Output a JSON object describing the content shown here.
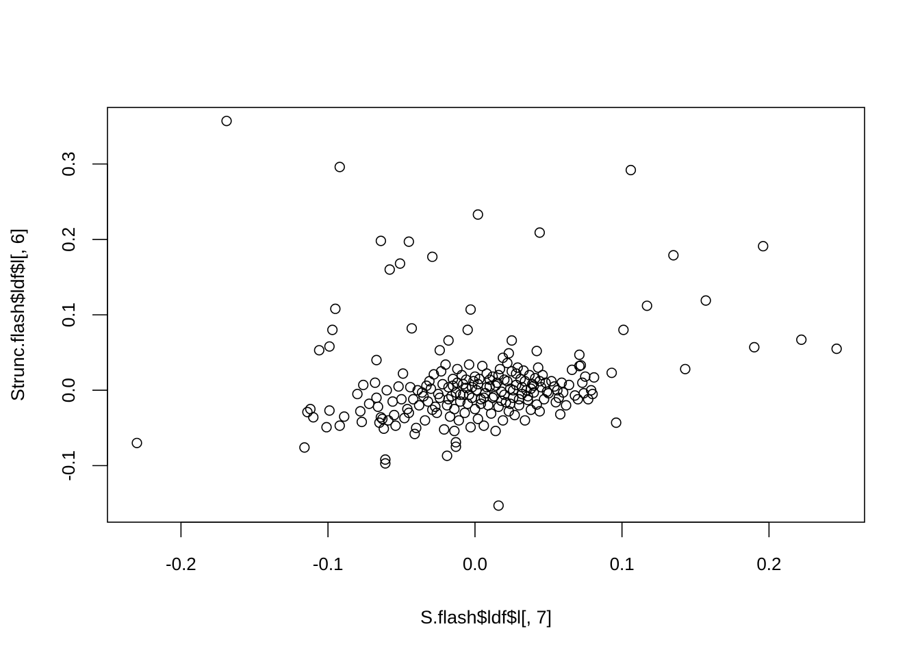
{
  "chart_data": {
    "type": "scatter",
    "title": "",
    "xlabel": "S.flash$ldf$l[, 7]",
    "ylabel": "Strunc.flash$ldf$l[, 6]",
    "xlim": [
      -0.25,
      0.265
    ],
    "ylim": [
      -0.175,
      0.375
    ],
    "xticks": [
      -0.2,
      -0.1,
      0.0,
      0.1,
      0.2
    ],
    "yticks": [
      -0.1,
      0.0,
      0.1,
      0.2,
      0.3
    ],
    "xtick_labels": [
      "-0.2",
      "-0.1",
      "0.0",
      "0.1",
      "0.2"
    ],
    "ytick_labels": [
      "-0.1",
      "0.0",
      "0.1",
      "0.2",
      "0.3"
    ],
    "grid": false,
    "legend": "none",
    "marker": "open-circle",
    "color": "#000000",
    "points": [
      [
        -0.169,
        0.357
      ],
      [
        -0.092,
        0.296
      ],
      [
        0.106,
        0.292
      ],
      [
        0.002,
        0.233
      ],
      [
        -0.064,
        0.198
      ],
      [
        -0.045,
        0.197
      ],
      [
        0.044,
        0.209
      ],
      [
        0.196,
        0.191
      ],
      [
        0.135,
        0.179
      ],
      [
        -0.051,
        0.168
      ],
      [
        -0.058,
        0.16
      ],
      [
        -0.029,
        0.177
      ],
      [
        0.157,
        0.119
      ],
      [
        0.117,
        0.112
      ],
      [
        -0.095,
        0.108
      ],
      [
        -0.003,
        0.107
      ],
      [
        -0.043,
        0.082
      ],
      [
        -0.097,
        0.08
      ],
      [
        -0.005,
        0.08
      ],
      [
        0.101,
        0.08
      ],
      [
        0.222,
        0.067
      ],
      [
        0.19,
        0.057
      ],
      [
        0.246,
        0.055
      ],
      [
        0.025,
        0.066
      ],
      [
        -0.018,
        0.066
      ],
      [
        -0.106,
        0.053
      ],
      [
        -0.099,
        0.058
      ],
      [
        -0.024,
        0.053
      ],
      [
        0.042,
        0.052
      ],
      [
        0.023,
        0.049
      ],
      [
        0.071,
        0.047
      ],
      [
        -0.067,
        0.04
      ],
      [
        0.019,
        0.043
      ],
      [
        0.143,
        0.028
      ],
      [
        0.093,
        0.023
      ],
      [
        0.071,
        0.032
      ],
      [
        -0.049,
        0.022
      ],
      [
        -0.23,
        -0.07
      ],
      [
        -0.116,
        -0.076
      ],
      [
        0.096,
        -0.043
      ],
      [
        0.016,
        -0.153
      ],
      [
        -0.061,
        -0.092
      ],
      [
        -0.061,
        -0.097
      ],
      [
        -0.019,
        -0.087
      ],
      [
        -0.013,
        -0.069
      ],
      [
        -0.013,
        -0.075
      ],
      [
        -0.041,
        -0.058
      ],
      [
        -0.014,
        -0.054
      ],
      [
        -0.114,
        -0.029
      ],
      [
        -0.112,
        -0.025
      ],
      [
        -0.11,
        -0.036
      ],
      [
        -0.101,
        -0.049
      ],
      [
        -0.099,
        -0.027
      ],
      [
        -0.092,
        -0.047
      ],
      [
        -0.089,
        -0.035
      ],
      [
        -0.08,
        -0.005
      ],
      [
        -0.078,
        -0.028
      ],
      [
        -0.077,
        -0.042
      ],
      [
        -0.076,
        0.007
      ],
      [
        -0.072,
        -0.018
      ],
      [
        -0.068,
        0.01
      ],
      [
        -0.067,
        -0.01
      ],
      [
        -0.066,
        -0.022
      ],
      [
        -0.065,
        -0.043
      ],
      [
        -0.064,
        -0.036
      ],
      [
        -0.063,
        -0.038
      ],
      [
        -0.062,
        -0.051
      ],
      [
        -0.06,
        0.0
      ],
      [
        -0.059,
        -0.04
      ],
      [
        -0.056,
        -0.015
      ],
      [
        -0.055,
        -0.033
      ],
      [
        -0.054,
        -0.047
      ],
      [
        -0.052,
        0.005
      ],
      [
        -0.05,
        -0.012
      ],
      [
        -0.048,
        -0.037
      ],
      [
        -0.046,
        -0.025
      ],
      [
        -0.044,
        0.004
      ],
      [
        -0.042,
        -0.012
      ],
      [
        -0.04,
        -0.05
      ],
      [
        -0.038,
        -0.02
      ],
      [
        -0.036,
        -0.003
      ],
      [
        -0.034,
        -0.04
      ],
      [
        -0.032,
        -0.015
      ],
      [
        -0.03,
        0.002
      ],
      [
        -0.028,
        0.021
      ],
      [
        -0.026,
        -0.03
      ],
      [
        -0.024,
        -0.01
      ],
      [
        -0.022,
        0.008
      ],
      [
        -0.021,
        -0.052
      ],
      [
        -0.02,
        0.034
      ],
      [
        -0.019,
        -0.02
      ],
      [
        -0.018,
        0.004
      ],
      [
        -0.017,
        -0.035
      ],
      [
        -0.016,
        -0.008
      ],
      [
        -0.015,
        0.015
      ],
      [
        -0.014,
        -0.025
      ],
      [
        -0.013,
        -0.003
      ],
      [
        -0.012,
        0.01
      ],
      [
        -0.011,
        -0.04
      ],
      [
        -0.01,
        -0.015
      ],
      [
        -0.009,
        0.02
      ],
      [
        -0.008,
        -0.006
      ],
      [
        -0.007,
        -0.03
      ],
      [
        -0.006,
        0.003
      ],
      [
        -0.005,
        -0.018
      ],
      [
        -0.004,
        0.034
      ],
      [
        -0.003,
        -0.049
      ],
      [
        -0.002,
        -0.01
      ],
      [
        -0.001,
        0.012
      ],
      [
        0.0,
        -0.025
      ],
      [
        0.001,
        0.0
      ],
      [
        0.002,
        -0.038
      ],
      [
        0.003,
        0.015
      ],
      [
        0.004,
        -0.012
      ],
      [
        0.005,
        0.032
      ],
      [
        0.006,
        -0.047
      ],
      [
        0.007,
        -0.004
      ],
      [
        0.008,
        0.022
      ],
      [
        0.009,
        -0.02
      ],
      [
        0.01,
        0.005
      ],
      [
        0.011,
        -0.031
      ],
      [
        0.012,
        0.018
      ],
      [
        0.013,
        -0.008
      ],
      [
        0.014,
        -0.054
      ],
      [
        0.015,
        0.01
      ],
      [
        0.016,
        -0.022
      ],
      [
        0.017,
        0.028
      ],
      [
        0.018,
        -0.002
      ],
      [
        0.019,
        -0.04
      ],
      [
        0.02,
        0.014
      ],
      [
        0.021,
        -0.016
      ],
      [
        0.022,
        0.036
      ],
      [
        0.023,
        -0.028
      ],
      [
        0.024,
        0.002
      ],
      [
        0.025,
        0.025
      ],
      [
        0.026,
        -0.01
      ],
      [
        0.027,
        -0.033
      ],
      [
        0.028,
        0.007
      ],
      [
        0.029,
        0.03
      ],
      [
        0.03,
        -0.02
      ],
      [
        0.031,
        0.015
      ],
      [
        0.032,
        -0.005
      ],
      [
        0.033,
        0.026
      ],
      [
        0.034,
        -0.04
      ],
      [
        0.035,
        0.0
      ],
      [
        0.036,
        -0.013
      ],
      [
        0.037,
        0.02
      ],
      [
        0.038,
        -0.026
      ],
      [
        0.039,
        0.008
      ],
      [
        0.04,
        -0.003
      ],
      [
        0.041,
        0.016
      ],
      [
        0.042,
        -0.019
      ],
      [
        0.043,
        0.03
      ],
      [
        0.044,
        -0.028
      ],
      [
        0.045,
        0.004
      ],
      [
        0.046,
        0.02
      ],
      [
        0.047,
        -0.012
      ],
      [
        0.048,
        0.01
      ],
      [
        0.05,
        -0.004
      ],
      [
        0.052,
        0.012
      ],
      [
        0.054,
        0.005
      ],
      [
        0.055,
        -0.016
      ],
      [
        0.056,
        0.0
      ],
      [
        0.057,
        -0.01
      ],
      [
        0.058,
        -0.032
      ],
      [
        0.059,
        0.01
      ],
      [
        0.06,
        -0.003
      ],
      [
        0.062,
        -0.02
      ],
      [
        0.064,
        0.007
      ],
      [
        0.066,
        0.027
      ],
      [
        0.068,
        -0.007
      ],
      [
        0.07,
        -0.012
      ],
      [
        0.072,
        0.033
      ],
      [
        0.073,
        0.01
      ],
      [
        0.074,
        -0.004
      ],
      [
        0.075,
        0.018
      ],
      [
        0.077,
        -0.012
      ],
      [
        0.079,
        0.0
      ],
      [
        0.08,
        -0.005
      ],
      [
        0.081,
        0.017
      ],
      [
        -0.035,
        -0.008
      ],
      [
        -0.031,
        0.012
      ],
      [
        -0.027,
        -0.022
      ],
      [
        -0.023,
        0.025
      ],
      [
        -0.025,
        -0.005
      ],
      [
        -0.018,
        -0.012
      ],
      [
        -0.012,
        0.028
      ],
      [
        -0.008,
        0.008
      ],
      [
        -0.004,
        -0.006
      ],
      [
        0.0,
        0.018
      ],
      [
        0.004,
        -0.018
      ],
      [
        0.008,
        0.004
      ],
      [
        0.012,
        -0.01
      ],
      [
        0.016,
        0.02
      ],
      [
        0.02,
        -0.006
      ],
      [
        0.024,
        -0.018
      ],
      [
        0.028,
        0.022
      ],
      [
        0.032,
        0.004
      ],
      [
        0.036,
        -0.008
      ],
      [
        0.04,
        0.006
      ],
      [
        -0.045,
        -0.03
      ],
      [
        -0.039,
        0.0
      ],
      [
        -0.033,
        0.006
      ],
      [
        -0.029,
        -0.026
      ],
      [
        -0.015,
        0.006
      ],
      [
        -0.01,
        -0.006
      ],
      [
        -0.006,
        0.014
      ],
      [
        -0.002,
        0.004
      ],
      [
        0.002,
        0.008
      ],
      [
        0.006,
        -0.01
      ],
      [
        0.01,
        0.014
      ],
      [
        0.014,
        0.006
      ],
      [
        0.018,
        -0.014
      ],
      [
        0.022,
        0.012
      ],
      [
        0.026,
        0.0
      ],
      [
        0.03,
        -0.012
      ],
      [
        0.034,
        0.012
      ],
      [
        0.038,
        0.002
      ],
      [
        0.044,
        0.012
      ],
      [
        0.049,
        -0.002
      ]
    ]
  }
}
